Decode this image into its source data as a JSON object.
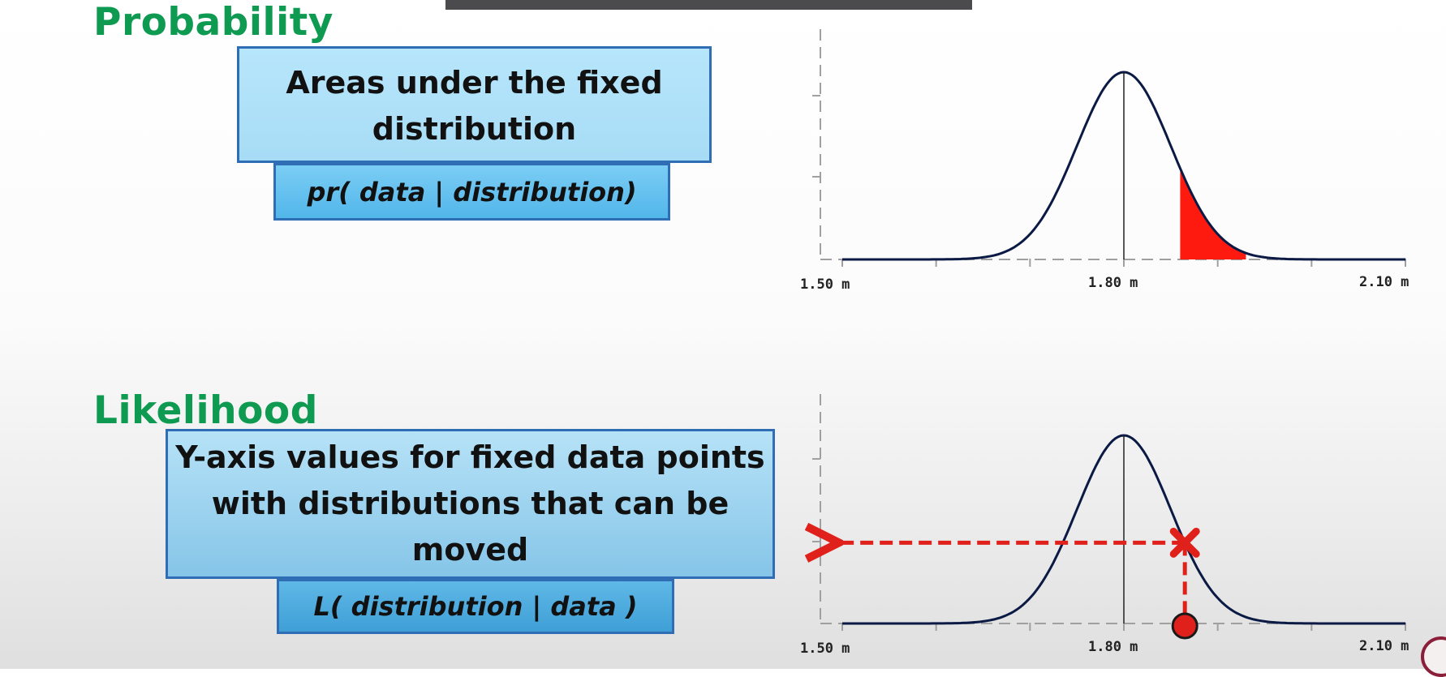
{
  "top": {
    "heading": "Probability",
    "box_title": "Areas under the fixed distribution",
    "box_formula": "pr( data | distribution)",
    "x_ticks": [
      "1.50 m",
      "1.80 m",
      "2.10 m"
    ]
  },
  "bottom": {
    "heading": "Likelihood",
    "box_title": "Y-axis values for fixed data points with distributions that can be moved",
    "box_formula": "L( distribution | data )",
    "x_ticks": [
      "1.50 m",
      "1.80 m",
      "2.10 m"
    ]
  },
  "chart_data": [
    {
      "type": "area",
      "distribution": "normal",
      "xlim": [
        1.5,
        2.1
      ],
      "mean": 1.8,
      "sd": 0.05,
      "shaded_region": [
        1.86,
        1.93
      ],
      "colors": {
        "curve": "#0b1a44",
        "shaded": "#ff1a10",
        "axis": "#a0a0a0"
      }
    },
    {
      "type": "line",
      "distribution": "normal",
      "xlim": [
        1.5,
        2.1
      ],
      "mean": 1.8,
      "sd": 0.05,
      "data_point": 1.865,
      "colors": {
        "curve": "#0b1a44",
        "marker": "#e0201a",
        "axis": "#a0a0a0"
      }
    }
  ]
}
